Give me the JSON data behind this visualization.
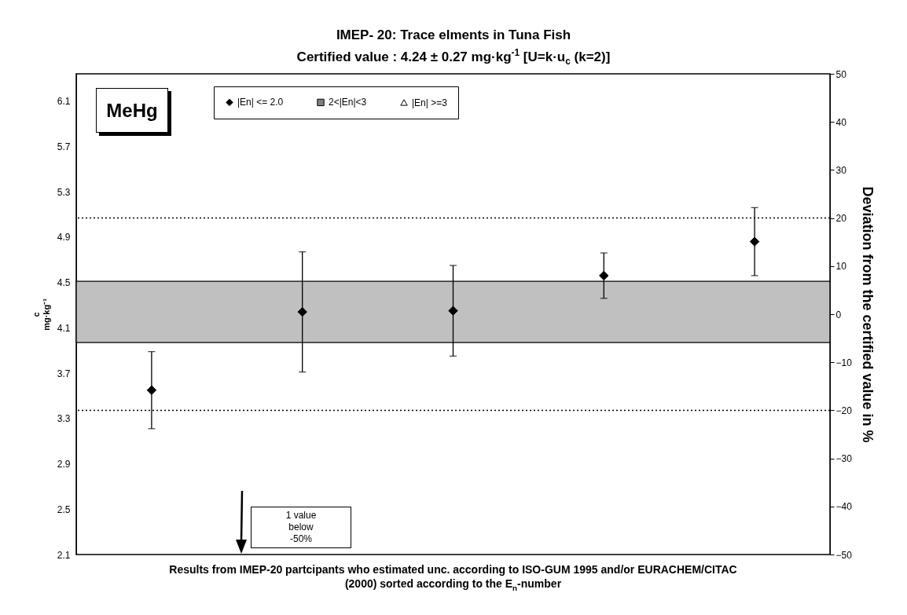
{
  "chart_data": {
    "type": "scatter",
    "title": "IMEP- 20: Trace elments in Tuna Fish",
    "subtitle": "Certified value : 4.24 ± 0.27 mg·kg$^{-1}$  [U=k·u$_{c}$  (k=2)]",
    "xlabel": "Results from IMEP-20 partcipants who estimated unc. according to ISO-GUM 1995 and/or EURACHEM/CITAC (2000) sorted according to the E$_{n}$-number",
    "ylabel": "c\nmg·kg⁻¹",
    "y2label": "Deviation from the certified value in %",
    "annotations": [
      "MeHg",
      "1 value below -50%"
    ],
    "categories": [
      null,
      null,
      null,
      null,
      null
    ],
    "series": [
      {
        "name": "|En| <= 2.0",
        "color": "#000000",
        "marker": "diamond",
        "values": [
          3.55,
          4.24,
          4.25,
          4.56,
          4.86
        ],
        "errors": [
          0.34,
          0.53,
          0.4,
          0.2,
          0.3
        ]
      },
      {
        "name": "2<|En|<3",
        "color": "#808080",
        "marker": "square",
        "values": [
          null,
          null,
          null,
          null,
          null
        ]
      },
      {
        "name": "|En| >=3",
        "color": "#ffffff",
        "marker": "triangle",
        "values": [
          null,
          null,
          null,
          null,
          null
        ]
      }
    ],
    "ylim": [
      2.1,
      6.34
    ],
    "yticks": [
      2.1,
      2.5,
      2.9,
      3.3,
      3.7,
      4.1,
      4.5,
      4.9,
      5.3,
      5.7,
      6.1
    ],
    "y2lim": [
      -50,
      50
    ],
    "y2ticks": [
      -50,
      -40,
      -30,
      -20,
      -10,
      0,
      10,
      20,
      30,
      40,
      50
    ],
    "ref_lines": [
      {
        "axis": "y2",
        "value": 20,
        "line_style": "dotted"
      },
      {
        "axis": "y2",
        "value": -20,
        "line_style": "dotted"
      }
    ],
    "bands": [
      {
        "axis": "y",
        "from": 3.97,
        "to": 4.51,
        "color": "#c0c0c0"
      }
    ],
    "legend": "top left",
    "grid": false
  }
}
